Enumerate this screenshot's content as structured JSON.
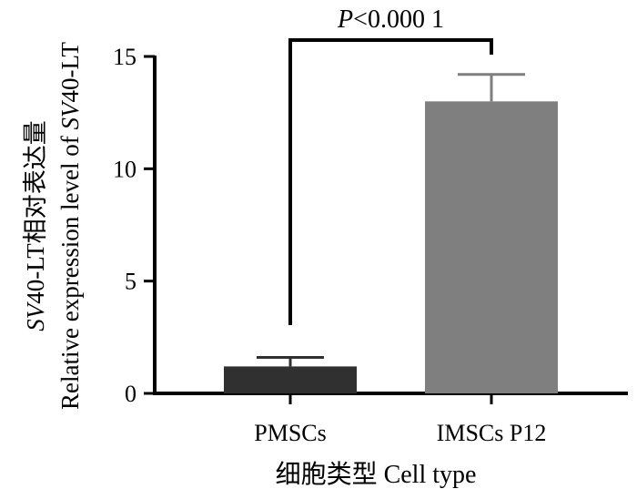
{
  "chart_data": {
    "type": "bar",
    "categories": [
      "PMSCs",
      "IMSCs P12"
    ],
    "values": [
      1.2,
      13.0
    ],
    "errors": [
      0.4,
      1.2
    ],
    "colors": [
      "#303030",
      "#7f7f7f"
    ],
    "xlabel": "细胞类型 Cell type",
    "ylabel_line1_italic": "SV",
    "ylabel_line1_rest": "40-LT相对表达量",
    "ylabel_line2": "Relative expression level of",
    "ylabel_line2_italic": "SV",
    "ylabel_line2_rest": "40-LT",
    "ylim": [
      0,
      15
    ],
    "yticks": [
      0,
      5,
      10,
      15
    ],
    "significance": {
      "italic": "P",
      "text": "<0.000 1"
    },
    "grid": false,
    "legend": "none"
  }
}
